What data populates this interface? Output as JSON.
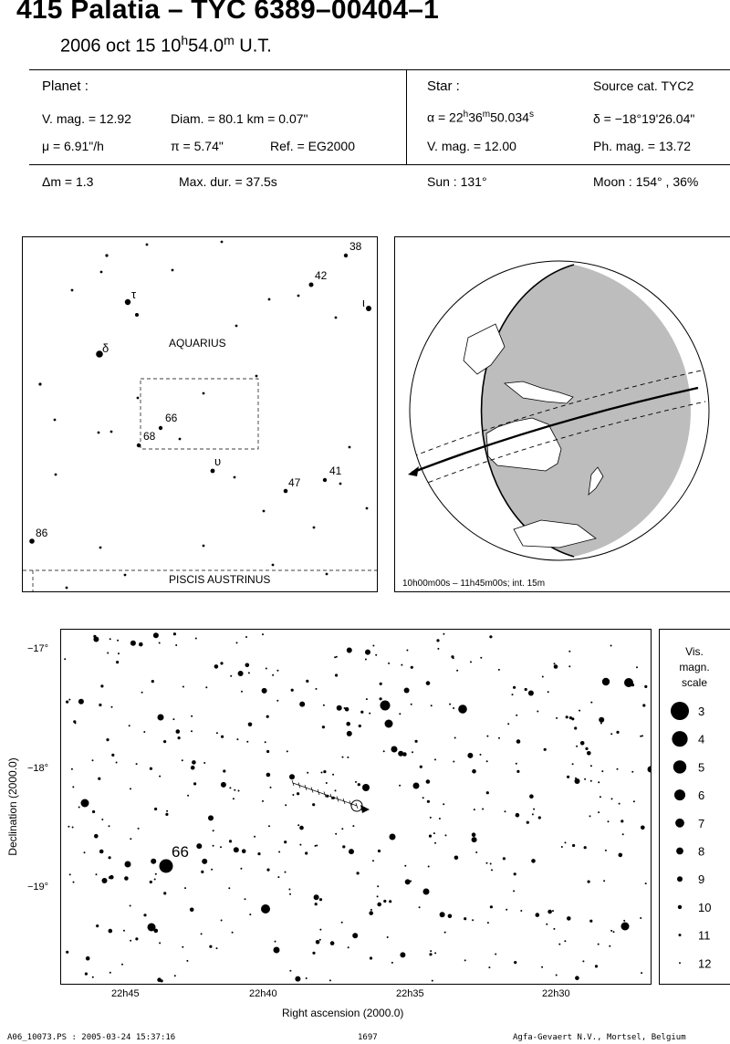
{
  "header": {
    "title": "415 Palatia  –  TYC 6389–00404–1",
    "date": "2006 oct 15  10",
    "time_h": "h",
    "time_min": "54.0",
    "time_m": "m",
    "time_ut": " U.T."
  },
  "planet": {
    "heading": "Planet :",
    "vmag": "V. mag. = 12.92",
    "diam": "Diam. = 80.1 km = 0.07\"",
    "mu": "μ =  6.91\"/h",
    "pi": "π =  5.74\"",
    "ref": "Ref. = EG2000",
    "dm": "Δm = 1.3",
    "maxdur": "Max. dur. = 37.5s"
  },
  "star": {
    "heading": "Star :",
    "source": "Source cat.  TYC2",
    "alpha_pre": "α = 22",
    "alpha_h": "h",
    "alpha_mid": "36",
    "alpha_m": "m",
    "alpha_sec": "50.034",
    "alpha_s": "s",
    "delta": "δ = −18°19'26.04\"",
    "vmag": "V. mag. = 12.00",
    "phmag": "Ph. mag. = 13.72",
    "sun": "Sun : 131°",
    "moon": "Moon : 154° , 36%"
  },
  "finder": {
    "constellation": "AQUARIUS",
    "constellation2": "PISCIS AUSTRINUS",
    "labels": [
      "38",
      "42",
      "ι",
      "τ",
      "δ",
      "66",
      "68",
      "υ",
      "47",
      "41",
      "86"
    ]
  },
  "globe": {
    "caption": "10h00m00s – 11h45m00s; int. 15m"
  },
  "chart_data": {
    "type": "scatter",
    "title": "",
    "xlabel": "Right ascension (2000.0)",
    "ylabel": "Declination (2000.0)",
    "x_ticks": [
      "22h45",
      "22h40",
      "22h35",
      "22h30"
    ],
    "y_ticks": [
      "−17°",
      "−18°",
      "−19°"
    ],
    "highlight_star": "66",
    "scale": {
      "title_lines": [
        "Vis.",
        "magn.",
        "scale"
      ],
      "magnitudes": [
        "3",
        "4",
        "5",
        "6",
        "7",
        "8",
        "9",
        "10",
        "11",
        "12"
      ]
    }
  },
  "footer": {
    "left": "A06_10073.PS : 2005-03-24 15:37:16",
    "center": "1697",
    "right": "Agfa-Gevaert N.V., Mortsel, Belgium"
  }
}
